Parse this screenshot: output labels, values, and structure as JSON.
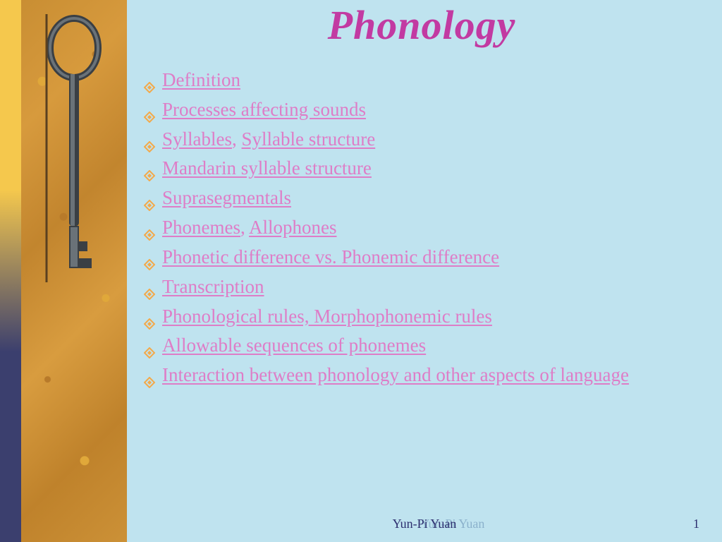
{
  "colors": {
    "background": "#bfe3ef",
    "title": "#c23aa2",
    "bullet": "#f3a94a",
    "link": "#de7dc7",
    "footer_primary": "#2d2f6f",
    "footer_shadow": "#82a9c6",
    "grad_top": "#f5c84d",
    "grad_bottom": "#3b3f6e"
  },
  "title": "Phonology",
  "title_fontsize": 58,
  "item_fontsize": 27,
  "items": [
    {
      "parts": [
        {
          "text": "Definition",
          "link": true
        }
      ]
    },
    {
      "parts": [
        {
          "text": "Processes affecting sounds",
          "link": true
        }
      ]
    },
    {
      "parts": [
        {
          "text": "Syllables",
          "link": true
        },
        {
          "text": ",   ",
          "link": false
        },
        {
          "text": "Syllable structure",
          "link": true
        }
      ]
    },
    {
      "parts": [
        {
          "text": "Mandarin syllable structure",
          "link": true
        }
      ]
    },
    {
      "parts": [
        {
          "text": "Suprasegmentals",
          "link": true
        }
      ]
    },
    {
      "parts": [
        {
          "text": "Phonemes",
          "link": true
        },
        {
          "text": ", ",
          "link": false
        },
        {
          "text": "Allophones",
          "link": true
        }
      ]
    },
    {
      "parts": [
        {
          "text": "Phonetic difference vs. Phonemic difference",
          "link": true
        }
      ]
    },
    {
      "parts": [
        {
          "text": "Transcription",
          "link": true
        }
      ]
    },
    {
      "parts": [
        {
          "text": "Phonological rules, Morphophonemic rules",
          "link": true
        }
      ]
    },
    {
      "parts": [
        {
          "text": "Allowable sequences of phonemes",
          "link": true
        }
      ]
    },
    {
      "parts": [
        {
          "text": "Interaction between phonology and other aspects of language",
          "link": true
        }
      ]
    }
  ],
  "footer": {
    "author": "Yun-Pi Yuan",
    "shadow_text": "Yun-Pi Yuan",
    "page_number": "1"
  }
}
